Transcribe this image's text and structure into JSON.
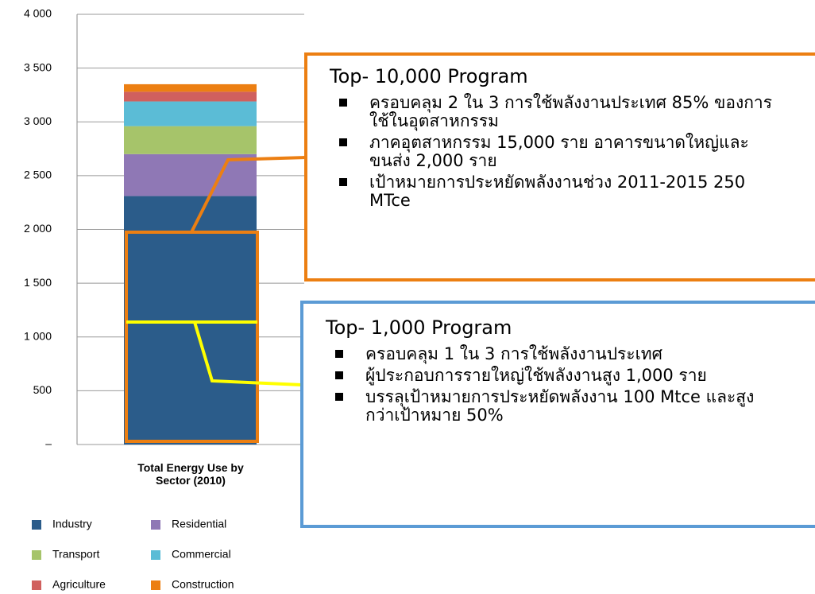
{
  "chart_data": {
    "type": "stacked_bar",
    "categories": [
      "Total Energy Use by Sector (2010)"
    ],
    "series": [
      {
        "name": "Industry",
        "color": "#2b5c8a",
        "values": [
          2310
        ]
      },
      {
        "name": "Residential",
        "color": "#8f78b5",
        "values": [
          390
        ]
      },
      {
        "name": "Transport",
        "color": "#a6c46a",
        "values": [
          260
        ]
      },
      {
        "name": "Commercial",
        "color": "#5bbcd6",
        "values": [
          230
        ]
      },
      {
        "name": "Agriculture",
        "color": "#d0605e",
        "values": [
          90
        ]
      },
      {
        "name": "Construction",
        "color": "#ec7f12",
        "values": [
          70
        ]
      }
    ],
    "ylim": [
      0,
      4000
    ],
    "yticks": [
      {
        "value": 0,
        "label": "–"
      },
      500,
      {
        "value": 1000,
        "label": "1 000"
      },
      {
        "value": 1500,
        "label": "1 500"
      },
      {
        "value": 2000,
        "label": "2 000"
      },
      {
        "value": 2500,
        "label": "2 500"
      },
      {
        "value": 3000,
        "label": "3 000"
      },
      {
        "value": 3500,
        "label": "3 500"
      },
      {
        "value": 4000,
        "label": "4 000"
      }
    ],
    "grid": true,
    "annotations": [
      {
        "title": "Top- 10,000 Program",
        "bullets": [
          "ครอบคลุม 2 ใน 3 การใช้พลังงานประเทศ 85% ของการใช้ในอุตสาหกรรม",
          "ภาคอุตสาหกรรม 15,000 ราย อาคารขนาดใหญ่และขนส่ง 2,000 ราย",
          "เป้าหมายการประหยัดพลังงานช่วง 2011-2015 250 MTce"
        ]
      },
      {
        "title": "Top- 1,000 Program",
        "bullets": [
          "ครอบคลุม 1 ใน 3 การใช้พลังงานประเทศ",
          "ผู้ประกอบการรายใหญ่ใช้พลังงานสูง 1,000 ราย",
          "บรรลุเป้าหมายการประหยัดพลังงาน 100 Mtce และสูงกว่าเป้าหมาย 50%"
        ]
      }
    ]
  }
}
